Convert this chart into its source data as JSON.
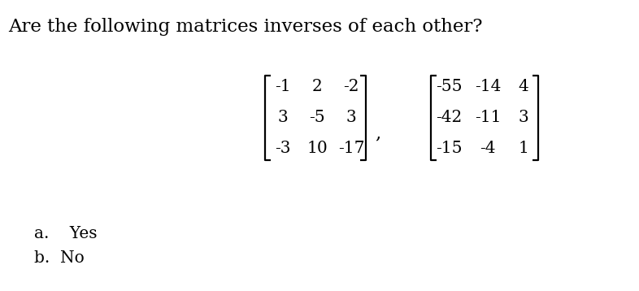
{
  "title": "Are the following matrices inverses of each other?",
  "title_fontsize": 16.5,
  "matrix1": [
    [
      "-1",
      "2",
      "-2"
    ],
    [
      "3",
      "-5",
      "3"
    ],
    [
      "-3",
      "10",
      "-17"
    ]
  ],
  "matrix2": [
    [
      "-55",
      "-14",
      "4"
    ],
    [
      "-42",
      "-11",
      "3"
    ],
    [
      "-15",
      "-4",
      "1"
    ]
  ],
  "options_a": "a.    Yes",
  "options_b": "b.  No",
  "text_color": "#000000",
  "background_color": "#ffffff",
  "matrix_fontsize": 14.5,
  "options_fontsize": 14.5,
  "bracket_lw": 1.6
}
